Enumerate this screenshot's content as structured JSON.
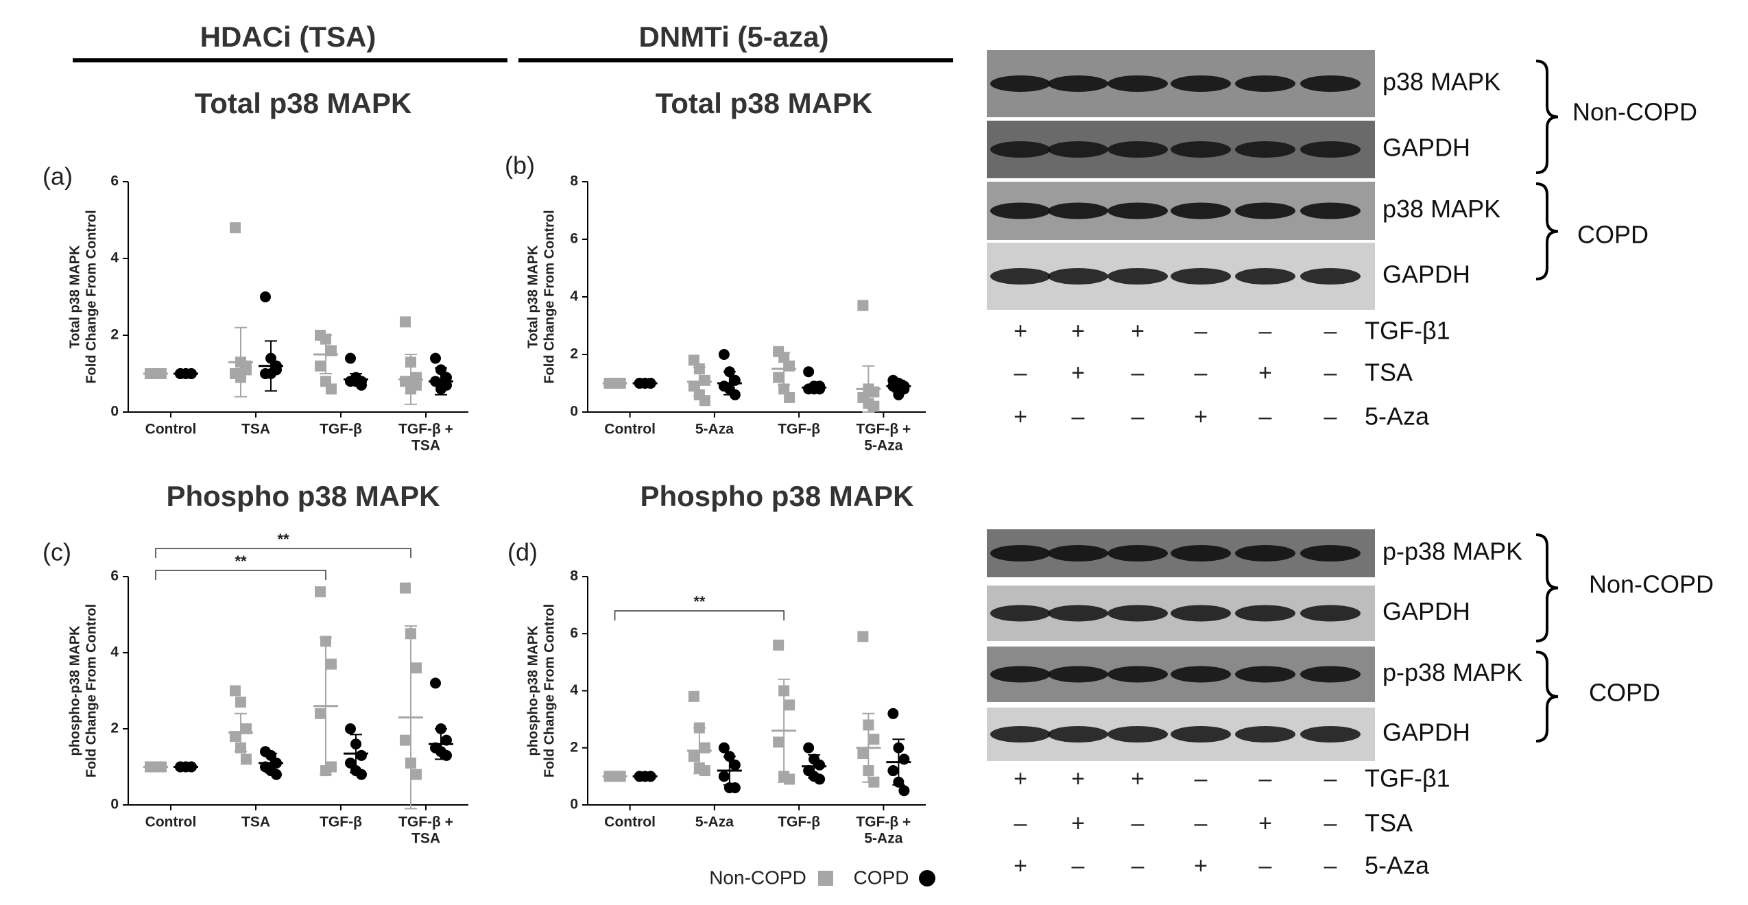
{
  "headers": [
    "HDACi (TSA)",
    "DNMTi (5-aza)"
  ],
  "chart_data": [
    {
      "type": "scatter",
      "panel": "(a)",
      "title": "Total p38 MAPK",
      "y_label": [
        "Total p38 MAPK",
        "Fold Change From Control"
      ],
      "categories": [
        "Control",
        "TSA",
        "TGF-β",
        [
          "TGF-β +",
          "TSA"
        ]
      ],
      "ylim": [
        0,
        6
      ],
      "yticks": [
        0,
        2,
        4,
        6
      ],
      "series": [
        {
          "name": "Non-COPD",
          "color": "#a6a6a6",
          "marker": "square",
          "values": [
            [
              1,
              1,
              1,
              1,
              1,
              1
            ],
            [
              4.8,
              1.3,
              1.2,
              1.0,
              0.9,
              1.1
            ],
            [
              2.0,
              1.9,
              1.6,
              1.2,
              0.8,
              0.6
            ],
            [
              2.35,
              1.3,
              0.9,
              0.8,
              0.6,
              0.7
            ]
          ],
          "mean": [
            1,
            1.3,
            1.5,
            0.85
          ],
          "sd": [
            0,
            0.9,
            0.5,
            0.65
          ]
        },
        {
          "name": "COPD",
          "color": "#000000",
          "marker": "circle",
          "values": [
            [
              1,
              1,
              1,
              1,
              1,
              1
            ],
            [
              3.0,
              1.4,
              1.2,
              1.0,
              1.0,
              1.1
            ],
            [
              1.4,
              0.9,
              0.8,
              0.8,
              0.8,
              0.7
            ],
            [
              1.4,
              1.1,
              0.9,
              0.8,
              0.6,
              0.7
            ]
          ],
          "mean": [
            1,
            1.2,
            0.85,
            0.8
          ],
          "sd": [
            0,
            0.65,
            0.15,
            0.35
          ]
        }
      ],
      "annotations": []
    },
    {
      "type": "scatter",
      "panel": "(b)",
      "title": "Total p38 MAPK",
      "y_label": [
        "Total p38 MAPK",
        "Fold Change From Control"
      ],
      "categories": [
        "Control",
        "5-Aza",
        "TGF-β",
        [
          "TGF-β +",
          "5-Aza"
        ]
      ],
      "ylim": [
        0,
        8
      ],
      "yticks": [
        0,
        2,
        4,
        6,
        8
      ],
      "series": [
        {
          "name": "Non-COPD",
          "color": "#a6a6a6",
          "marker": "square",
          "values": [
            [
              1,
              1,
              1,
              1,
              1,
              1
            ],
            [
              1.8,
              1.5,
              1.1,
              0.9,
              0.6,
              0.4
            ],
            [
              2.1,
              1.9,
              1.6,
              1.2,
              0.8,
              0.5
            ],
            [
              3.7,
              0.8,
              0.7,
              0.5,
              0.3,
              0.2
            ]
          ],
          "mean": [
            1,
            1.05,
            1.5,
            0.8
          ],
          "sd": [
            0,
            0.5,
            0.55,
            0.8
          ]
        },
        {
          "name": "COPD",
          "color": "#000000",
          "marker": "circle",
          "values": [
            [
              1,
              1,
              1,
              1,
              1,
              1
            ],
            [
              2.0,
              1.4,
              1.1,
              0.9,
              0.8,
              0.6
            ],
            [
              1.4,
              0.9,
              0.9,
              0.8,
              0.8,
              0.8
            ],
            [
              1.1,
              1.0,
              0.9,
              0.9,
              0.6,
              0.8
            ]
          ],
          "mean": [
            1,
            1.0,
            0.85,
            0.9
          ],
          "sd": [
            0,
            0.4,
            0.1,
            0.2
          ]
        }
      ],
      "annotations": []
    },
    {
      "type": "scatter",
      "panel": "(c)",
      "title": "Phospho p38 MAPK",
      "y_label": [
        "phospho-p38 MAPK",
        "Fold Change From Control"
      ],
      "categories": [
        "Control",
        "TSA",
        "TGF-β",
        [
          "TGF-β +",
          "TSA"
        ]
      ],
      "ylim": [
        0,
        6
      ],
      "yticks": [
        0,
        2,
        4,
        6
      ],
      "series": [
        {
          "name": "Non-COPD",
          "color": "#a6a6a6",
          "marker": "square",
          "values": [
            [
              1,
              1,
              1,
              1,
              1,
              1
            ],
            [
              3.0,
              2.7,
              2.0,
              1.8,
              1.5,
              1.2
            ],
            [
              5.6,
              4.3,
              3.7,
              2.4,
              0.9,
              1.0
            ],
            [
              5.7,
              4.5,
              3.6,
              1.7,
              1.1,
              0.8
            ]
          ],
          "mean": [
            1,
            1.9,
            2.6,
            2.3
          ],
          "sd": [
            0,
            0.5,
            1.8,
            2.4
          ]
        },
        {
          "name": "COPD",
          "color": "#000000",
          "marker": "circle",
          "values": [
            [
              1,
              1,
              1,
              1,
              1,
              1
            ],
            [
              1.4,
              1.3,
              1.1,
              1.0,
              0.9,
              0.8
            ],
            [
              2.0,
              1.6,
              1.3,
              1.1,
              0.9,
              0.8
            ],
            [
              3.2,
              2.0,
              1.7,
              1.5,
              1.4,
              1.3
            ]
          ],
          "mean": [
            1,
            1.1,
            1.35,
            1.6
          ],
          "sd": [
            0,
            0.25,
            0.5,
            0.4
          ]
        }
      ],
      "annotations": [
        {
          "text": "**",
          "from": "Control",
          "to": "TGF-β"
        },
        {
          "text": "**",
          "from": "Control",
          "to": "TGF-β + TSA"
        }
      ]
    },
    {
      "type": "scatter",
      "panel": "(d)",
      "title": "Phospho p38 MAPK",
      "y_label": [
        "phospho-p38 MAPK",
        "Fold Change From Control"
      ],
      "categories": [
        "Control",
        "5-Aza",
        "TGF-β",
        [
          "TGF-β +",
          "5-Aza"
        ]
      ],
      "ylim": [
        0,
        8
      ],
      "yticks": [
        0,
        2,
        4,
        6,
        8
      ],
      "series": [
        {
          "name": "Non-COPD",
          "color": "#a6a6a6",
          "marker": "square",
          "values": [
            [
              1,
              1,
              1,
              1,
              1,
              1
            ],
            [
              3.8,
              2.7,
              2.0,
              1.7,
              1.3,
              1.2
            ],
            [
              5.6,
              4.0,
              3.5,
              2.2,
              1.0,
              0.9
            ],
            [
              5.9,
              2.8,
              2.3,
              1.8,
              1.2,
              0.8
            ]
          ],
          "mean": [
            1,
            1.9,
            2.6,
            2.0
          ],
          "sd": [
            0,
            0.8,
            1.8,
            1.2
          ]
        },
        {
          "name": "COPD",
          "color": "#000000",
          "marker": "circle",
          "values": [
            [
              1,
              1,
              1,
              1,
              1,
              1
            ],
            [
              2.0,
              1.7,
              1.4,
              1.0,
              0.6,
              0.6
            ],
            [
              2.0,
              1.6,
              1.4,
              1.2,
              1.0,
              0.9
            ],
            [
              3.2,
              2.0,
              1.6,
              1.2,
              0.8,
              0.5
            ]
          ],
          "mean": [
            1,
            1.2,
            1.35,
            1.5
          ],
          "sd": [
            0,
            0.5,
            0.4,
            0.8
          ]
        }
      ],
      "annotations": [
        {
          "text": "**",
          "from": "Control",
          "to": "TGF-β"
        }
      ]
    }
  ],
  "blots": [
    {
      "rows": [
        "p38 MAPK",
        "GAPDH",
        "p38 MAPK",
        "GAPDH"
      ],
      "groups": [
        "Non-COPD",
        "COPD"
      ],
      "treatments": [
        {
          "label": "TGF-β1",
          "signs": [
            "+",
            "+",
            "+",
            "–",
            "–",
            "–"
          ]
        },
        {
          "label": "TSA",
          "signs": [
            "–",
            "+",
            "–",
            "–",
            "+",
            "–"
          ]
        },
        {
          "label": "5-Aza",
          "signs": [
            "+",
            "–",
            "–",
            "+",
            "–",
            "–"
          ]
        }
      ]
    },
    {
      "rows": [
        "p-p38 MAPK",
        "GAPDH",
        "p-p38 MAPK",
        "GAPDH"
      ],
      "groups": [
        "Non-COPD",
        "COPD"
      ],
      "treatments": [
        {
          "label": "TGF-β1",
          "signs": [
            "+",
            "+",
            "+",
            "–",
            "–",
            "–"
          ]
        },
        {
          "label": "TSA",
          "signs": [
            "–",
            "+",
            "–",
            "–",
            "+",
            "–"
          ]
        },
        {
          "label": "5-Aza",
          "signs": [
            "+",
            "–",
            "–",
            "+",
            "–",
            "–"
          ]
        }
      ]
    }
  ]
}
